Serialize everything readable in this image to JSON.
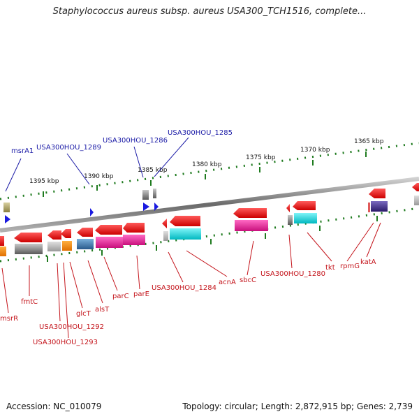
{
  "title": "Staphylococcus aureus subsp. aureus USA300_TCH1516, complete...",
  "footer": {
    "accession": "Accession: NC_010079",
    "summary": "Topology: circular; Length: 2,872,915 bp; Genes: 2,739"
  },
  "scale_labels": [
    "1395 kbp",
    "1390 kbp",
    "1385 kbp",
    "1380 kbp",
    "1375 kbp",
    "1370 kbp",
    "1365 kbp"
  ],
  "upper_gene_labels": [
    "msrA1",
    "USA300HOU_1289",
    "USA300HOU_1286",
    "USA300HOU_1285"
  ],
  "lower_gene_labels": [
    "msrR",
    "fmtC",
    "USA300HOU_1292",
    "USA300HOU_1293",
    "glcT",
    "alsT",
    "parC",
    "parE",
    "USA300HOU_1284",
    "acnA",
    "sbcC",
    "USA300HOU_1280",
    "tkt",
    "rpmG",
    "katA"
  ],
  "colors": {
    "title_text": "#222222",
    "upper_label": "#1a1aa6",
    "lower_label": "#c4151c",
    "backbone": "#8a8a8a",
    "scale_ticks": "#1e7a1e",
    "gene_red": "#ee1111",
    "gene_cyan": "#00d8e0",
    "gene_magenta": "#ee1a9a",
    "gene_gray": "#9a9a9a",
    "gene_blue": "#1a1ae0",
    "gene_steel": "#3a7ab0",
    "gene_orange": "#ff8c00",
    "gene_purple": "#4a3a8c",
    "gene_olive": "#a8a060"
  }
}
